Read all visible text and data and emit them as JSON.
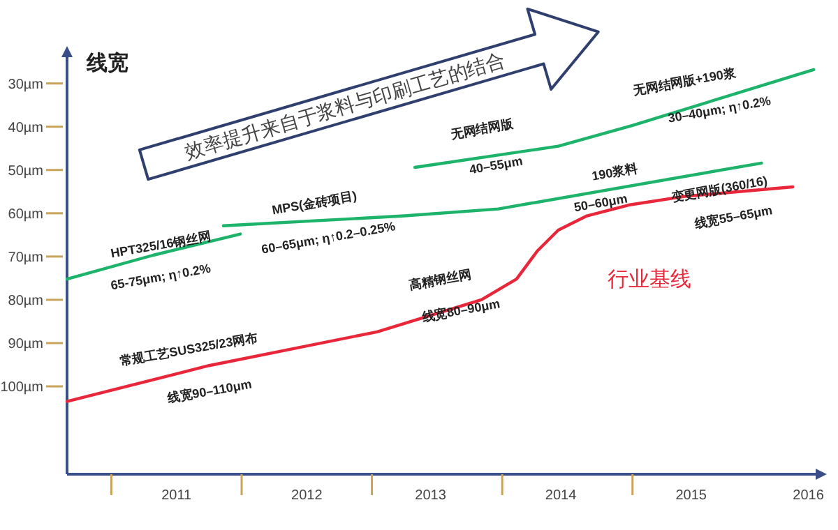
{
  "chart_data": {
    "type": "line",
    "ylabel": "线宽",
    "xlim": [
      2010.66,
      2016.47
    ],
    "ylim": [
      120.3,
      22
    ],
    "xticks": [
      {
        "value": 2011,
        "label": null
      },
      {
        "value": 2012,
        "label": null
      },
      {
        "value": 2013,
        "label": null
      },
      {
        "value": 2014,
        "label": null
      },
      {
        "value": 2015,
        "label": null
      },
      {
        "value": 2011.5,
        "label": "2011"
      },
      {
        "value": 2012.5,
        "label": "2012"
      },
      {
        "value": 2013.45,
        "label": "2013"
      },
      {
        "value": 2014.45,
        "label": "2014"
      },
      {
        "value": 2015.45,
        "label": "2015"
      },
      {
        "value": 2016.35,
        "label": "2016"
      }
    ],
    "yticks": [
      {
        "value": 30,
        "label": "30µm"
      },
      {
        "value": 40,
        "label": "40µm"
      },
      {
        "value": 50,
        "label": "50µm"
      },
      {
        "value": 60,
        "label": "60µm"
      },
      {
        "value": 70,
        "label": "70µm"
      },
      {
        "value": 80,
        "label": "80µm"
      },
      {
        "value": 90,
        "label": "90µm"
      },
      {
        "value": 100,
        "label": "100µm"
      }
    ],
    "grid": false,
    "marker": "none",
    "line_style": "solid",
    "series": [
      {
        "name": "行业基线",
        "color": "#e8283a",
        "x": [
          2010.66,
          2011.75,
          2013.04,
          2013.84,
          2014.11,
          2014.27,
          2014.43,
          2014.65,
          2014.97,
          2015.4,
          2016.23
        ],
        "values": [
          103.5,
          95.2,
          87.4,
          80,
          75.2,
          68.7,
          63.9,
          60.6,
          58.1,
          56.1,
          53.9
        ]
      },
      {
        "color": "#1db36b",
        "x": [
          2010.66,
          2011.32,
          2011.99
        ],
        "values": [
          75.2,
          69.7,
          64.8
        ]
      },
      {
        "color": "#1db36b",
        "x": [
          2011.86,
          2013.25,
          2013.97,
          2015.99
        ],
        "values": [
          62.9,
          60.6,
          59,
          48.4
        ]
      },
      {
        "color": "#1db36b",
        "x": [
          2013.33,
          2014.43,
          2015.0,
          2016.39
        ],
        "values": [
          49.4,
          44.5,
          39.7,
          26.8
        ]
      }
    ],
    "annotations": [
      "效率提升来自于浆料与印刷工艺的结合",
      "HPT325/16钢丝网",
      "65-75μm; η↑0.2%",
      "MPS(金砖项目)",
      "60–65μm; η↑0.2–0.25%",
      "无网结网版",
      "40–55μm",
      "无网结网版+190浆",
      "30–40μm; η↑0.2%",
      "190浆料",
      "50–60μm",
      "变更网版(360/16)",
      "线宽55–65μm",
      "高精钢丝网",
      "线宽80–90μm",
      "常规工艺SUS325/23网布",
      "线宽90–110μm"
    ]
  }
}
